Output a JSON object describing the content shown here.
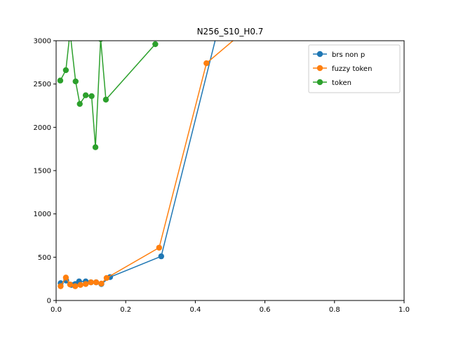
{
  "chart_data": {
    "type": "line",
    "title": "N256_S10_H0.7",
    "xlabel": "",
    "ylabel": "",
    "xlim": [
      0,
      1
    ],
    "ylim": [
      0,
      3000
    ],
    "xticks": [
      "0.0",
      "0.2",
      "0.4",
      "0.6",
      "0.8",
      "1.0"
    ],
    "yticks": [
      "0",
      "500",
      "1000",
      "1500",
      "2000",
      "2500",
      "3000"
    ],
    "grid": false,
    "legend_position": "top-right",
    "series": [
      {
        "name": "brs non p",
        "color": "#1f77b4",
        "x": [
          0.013,
          0.029,
          0.044,
          0.055,
          0.066,
          0.085,
          0.1,
          0.115,
          0.13,
          0.155,
          0.302,
          0.46
        ],
        "y": [
          200,
          230,
          180,
          190,
          220,
          220,
          210,
          210,
          190,
          270,
          510,
          3050
        ]
      },
      {
        "name": "fuzzy token",
        "color": "#ff7f0e",
        "x": [
          0.013,
          0.028,
          0.04,
          0.055,
          0.07,
          0.085,
          0.1,
          0.115,
          0.13,
          0.145,
          0.296,
          0.432,
          0.52
        ],
        "y": [
          165,
          265,
          185,
          165,
          180,
          190,
          210,
          210,
          195,
          260,
          610,
          2740,
          3040
        ]
      },
      {
        "name": "token",
        "color": "#2ca02c",
        "x": [
          0.012,
          0.028,
          0.04,
          0.056,
          0.068,
          0.085,
          0.102,
          0.113,
          0.128,
          0.143,
          0.285
        ],
        "y": [
          2540,
          2660,
          3100,
          2530,
          2270,
          2370,
          2360,
          1770,
          3020,
          2320,
          2960
        ]
      }
    ]
  }
}
